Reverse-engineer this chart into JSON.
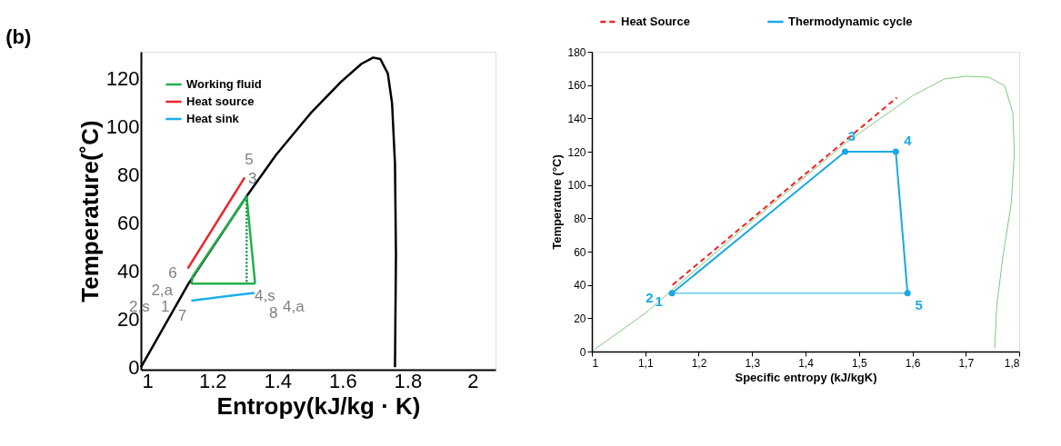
{
  "chart_data": [
    {
      "type": "line",
      "title": "(b)",
      "xlabel": "Entropy(kJ/kg · K)",
      "ylabel": "Temperature(˚C)",
      "xlim": [
        0.98,
        2.07
      ],
      "ylim": [
        -1,
        131
      ],
      "xticks": [
        1,
        1.2,
        1.4,
        1.6,
        1.8,
        2
      ],
      "yticks": [
        0,
        20,
        40,
        60,
        80,
        100,
        120
      ],
      "grid": false,
      "legend": "top left",
      "series": [
        {
          "color": "#000000",
          "line_style": "solid",
          "marker": "none",
          "x": [
            0.98,
            1.126,
            1.306,
            1.396,
            1.505,
            1.595,
            1.658,
            1.694,
            1.716,
            1.739,
            1.752,
            1.761,
            1.764,
            1.761
          ],
          "values": [
            0,
            34.7,
            71.2,
            88.3,
            106,
            118.5,
            126,
            128.6,
            128,
            122,
            109.7,
            84.5,
            46.7,
            0
          ]
        },
        {
          "name": "Working fluid",
          "color": "#22b14c",
          "line_style": "solid",
          "marker": "none",
          "x": [
            1.135,
            1.14,
            1.305,
            1.331
          ],
          "values": [
            34.7,
            38,
            70.9,
            34.7
          ]
        },
        {
          "color": "#22b14c",
          "line_style": "solid",
          "marker": "none",
          "x": [
            1.331,
            1.135
          ],
          "values": [
            34.7,
            34.7
          ]
        },
        {
          "name": "Heat source",
          "color": "#e8262a",
          "line_style": "solid",
          "marker": "none",
          "x": [
            1.124,
            1.299
          ],
          "values": [
            41,
            78.8
          ]
        },
        {
          "name": "Heat sink",
          "color": "#1ab0e8",
          "line_style": "solid",
          "marker": "none",
          "x": [
            1.135,
            1.329
          ],
          "values": [
            27.7,
            30.9
          ]
        },
        {
          "color": "#1a9440",
          "line_style": "dotted",
          "marker": "none",
          "x": [
            1.305,
            1.305
          ],
          "values": [
            70.9,
            34.7
          ]
        },
        {
          "color": "#1a9440",
          "line_style": "dotted",
          "marker": "none",
          "x": [
            1.135,
            1.135
          ],
          "values": [
            34.7,
            37
          ]
        }
      ],
      "annotations": [
        {
          "text": "5",
          "x": 1.299,
          "y": 78.8
        },
        {
          "text": "3",
          "x": 1.305,
          "y": 70.9
        },
        {
          "text": "6",
          "x": 1.124,
          "y": 41
        },
        {
          "text": "2,a",
          "x": 1.14,
          "y": 38
        },
        {
          "text": "2,s",
          "x": 1.135,
          "y": 37
        },
        {
          "text": "1",
          "x": 1.135,
          "y": 34.7
        },
        {
          "text": "4,s",
          "x": 1.305,
          "y": 34.7
        },
        {
          "text": "4,a",
          "x": 1.331,
          "y": 34.7
        },
        {
          "text": "8",
          "x": 1.329,
          "y": 30.9
        },
        {
          "text": "7",
          "x": 1.135,
          "y": 27.7
        }
      ]
    },
    {
      "type": "line",
      "xlabel": "Specific entropy (kJ/kgK)",
      "ylabel": "Temperature (°C)",
      "xlim": [
        1,
        1.8
      ],
      "ylim": [
        0,
        180
      ],
      "xticks": [
        1,
        {
          "value": 1.1,
          "label": "1,1"
        },
        {
          "value": 1.2,
          "label": "1,2"
        },
        {
          "value": 1.3,
          "label": "1,3"
        },
        {
          "value": 1.4,
          "label": "1,4"
        },
        {
          "value": 1.5,
          "label": "1,5"
        },
        {
          "value": 1.6,
          "label": "1,6"
        },
        {
          "value": 1.7,
          "label": "1,7"
        },
        {
          "value": 1.8,
          "label": "1,8"
        }
      ],
      "yticks": [
        0,
        20,
        40,
        60,
        80,
        100,
        120,
        140,
        160,
        180
      ],
      "grid": false,
      "legend": "top",
      "series": [
        {
          "color": "#7fc97f",
          "line_style": "solid",
          "marker": "none",
          "x": [
            1.004,
            1.1,
            1.3,
            1.474,
            1.6,
            1.66,
            1.701,
            1.743,
            1.773,
            1.788,
            1.791,
            1.785,
            1.77,
            1.758,
            1.754
          ],
          "values": [
            1,
            23,
            78.3,
            125,
            153.5,
            163.7,
            165.3,
            164.7,
            159.6,
            143.4,
            119,
            88.5,
            58,
            27.5,
            2
          ]
        },
        {
          "name": "Heat Source",
          "color": "#ee2222",
          "line_style": "dashed",
          "marker": "none",
          "x": [
            1.151,
            1.571
          ],
          "values": [
            40,
            152.5
          ]
        },
        {
          "color": "#1ba9e0",
          "line_style": "solid",
          "marker": "none",
          "x": [
            1.591,
            1.15
          ],
          "values": [
            35,
            35
          ]
        },
        {
          "name": "Thermodynamic cycle",
          "color": "#1ba9e0",
          "line_style": "solid",
          "marker": "circle",
          "x": [
            1.15,
            1.474,
            1.569,
            1.591
          ],
          "values": [
            35,
            120,
            120,
            35
          ]
        }
      ],
      "annotations": [
        {
          "text": "1",
          "x": 1.15,
          "y": 35
        },
        {
          "text": "2",
          "x": 1.151,
          "y": 40
        },
        {
          "text": "3",
          "x": 1.474,
          "y": 120
        },
        {
          "text": "4",
          "x": 1.569,
          "y": 120
        },
        {
          "text": "5",
          "x": 1.591,
          "y": 35
        }
      ]
    }
  ]
}
